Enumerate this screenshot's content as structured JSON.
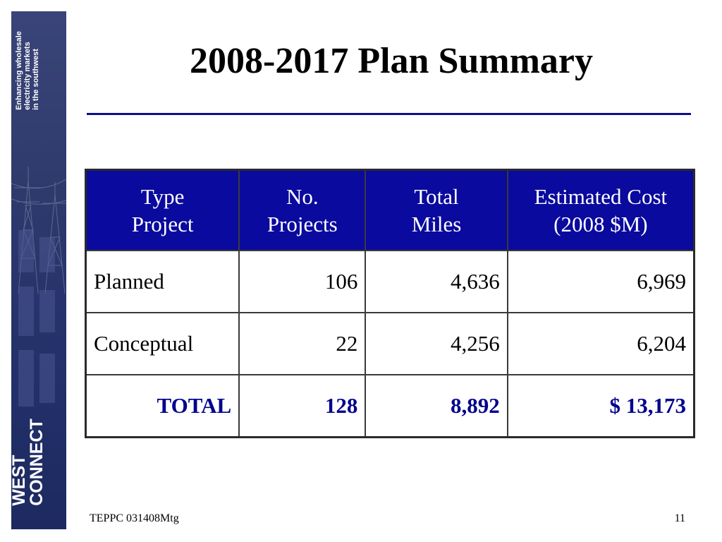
{
  "sidebar": {
    "tagline": [
      "Enhancing wholesale",
      "electricity markets",
      "in the southwest"
    ],
    "logo": [
      "WEST",
      "CONNECT"
    ],
    "colors": {
      "background": "#2e3a6c",
      "text": "#ffffff"
    }
  },
  "slide": {
    "title": "2008-2017 Plan Summary",
    "rule_color": "#0b0f8c"
  },
  "table": {
    "header_color": "#0a0a9e",
    "headers": [
      {
        "line1": "Type",
        "line2": "Project"
      },
      {
        "line1": "No.",
        "line2": "Projects"
      },
      {
        "line1": "Total",
        "line2": "Miles"
      },
      {
        "line1": "Estimated Cost",
        "line2": "(2008 $M)"
      }
    ],
    "rows": [
      {
        "type": "Planned",
        "projects": "106",
        "miles": "4,636",
        "cost": "6,969"
      },
      {
        "type": "Conceptual",
        "projects": "22",
        "miles": "4,256",
        "cost": "6,204"
      }
    ],
    "total": {
      "type": "TOTAL",
      "projects": "128",
      "miles": "8,892",
      "cost": "$ 13,173"
    }
  },
  "footer": {
    "left": "TEPPC 031408Mtg",
    "page_number": "11"
  }
}
